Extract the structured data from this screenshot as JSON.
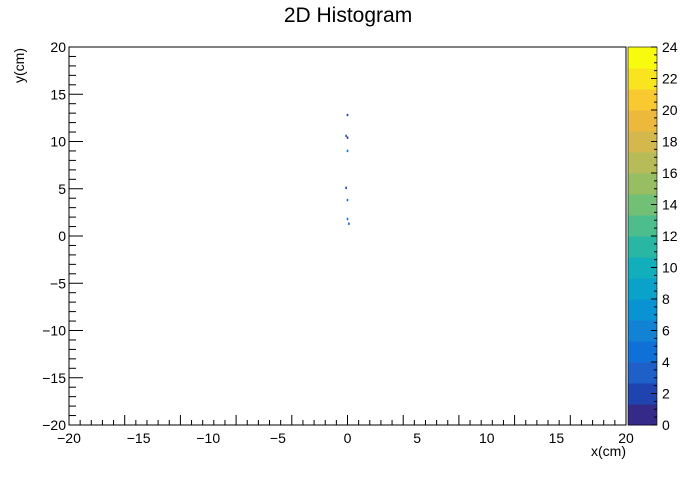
{
  "chart_data": {
    "type": "heatmap",
    "title": "2D Histogram",
    "xlabel": "x(cm)",
    "ylabel": "y(cm)",
    "xlim": [
      -20,
      20
    ],
    "ylim": [
      -20,
      20
    ],
    "x_ticks": [
      -20,
      -15,
      -10,
      -5,
      0,
      5,
      10,
      15,
      20
    ],
    "y_ticks": [
      -20,
      -15,
      -10,
      -5,
      0,
      5,
      10,
      15,
      20
    ],
    "tick_labels": {
      "x": [
        "−20",
        "−15",
        "−10",
        "−5",
        "0",
        "5",
        "10",
        "15",
        "20"
      ],
      "y": [
        "−20",
        "−15",
        "−10",
        "−5",
        "0",
        "5",
        "10",
        "15",
        "20"
      ]
    },
    "grid": false,
    "colorbar": {
      "min": 0,
      "max": 24,
      "ticks": [
        0,
        2,
        4,
        6,
        8,
        10,
        12,
        14,
        16,
        18,
        20,
        22,
        24
      ],
      "colors": [
        "#352a87",
        "#1f44b0",
        "#1f5fc8",
        "#0f71d8",
        "#1283d4",
        "#0a93d2",
        "#0aa2c8",
        "#12aebb",
        "#29b7a4",
        "#4dbd8e",
        "#72bf76",
        "#97be62",
        "#b8bc58",
        "#d4b84e",
        "#ecb93d",
        "#f9c931",
        "#f8e51f",
        "#f9fb0e"
      ]
    },
    "points": [
      {
        "x": 0.0,
        "y": 12.8,
        "value": 2
      },
      {
        "x": -0.1,
        "y": 10.6,
        "value": 3
      },
      {
        "x": 0.0,
        "y": 10.4,
        "value": 1
      },
      {
        "x": 0.0,
        "y": 9.0,
        "value": 4
      },
      {
        "x": -0.1,
        "y": 5.1,
        "value": 2
      },
      {
        "x": 0.0,
        "y": 3.8,
        "value": 5
      },
      {
        "x": 0.0,
        "y": 1.8,
        "value": 4
      },
      {
        "x": 0.1,
        "y": 1.3,
        "value": 3
      }
    ]
  }
}
